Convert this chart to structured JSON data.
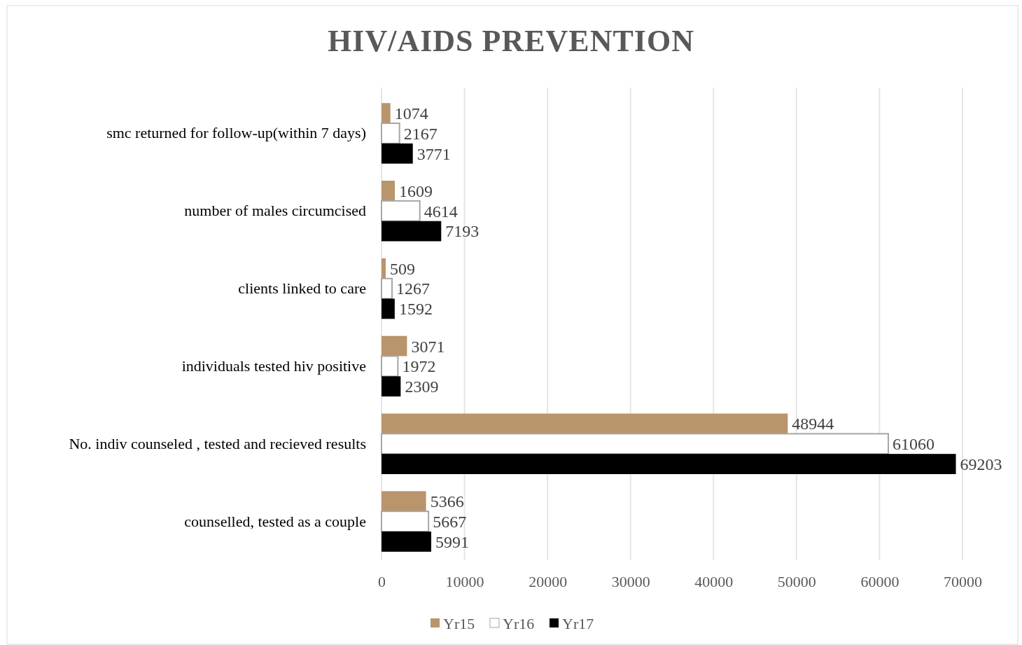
{
  "chart_data": {
    "type": "bar",
    "orientation": "horizontal",
    "title": "HIV/AIDS PREVENTION",
    "categories": [
      "smc returned for follow-up(within 7 days)",
      "number of males circumcised",
      "clients linked to care",
      "individuals tested hiv positive",
      "No. indiv counseled , tested and recieved results",
      "counselled, tested as a couple"
    ],
    "series": [
      {
        "name": "Yr15",
        "color": "#b8956a",
        "values": [
          1074,
          1609,
          509,
          3071,
          48944,
          5366
        ]
      },
      {
        "name": "Yr16",
        "color": "#ffffff",
        "values": [
          2167,
          4614,
          1267,
          1972,
          61060,
          5667
        ]
      },
      {
        "name": "Yr17",
        "color": "#000000",
        "values": [
          3771,
          7193,
          1592,
          2309,
          69203,
          5991
        ]
      }
    ],
    "xlim": [
      0,
      70000
    ],
    "xticks": [
      0,
      10000,
      20000,
      30000,
      40000,
      50000,
      60000,
      70000
    ],
    "grid": "x",
    "legend": "bottom",
    "data_labels": true
  }
}
